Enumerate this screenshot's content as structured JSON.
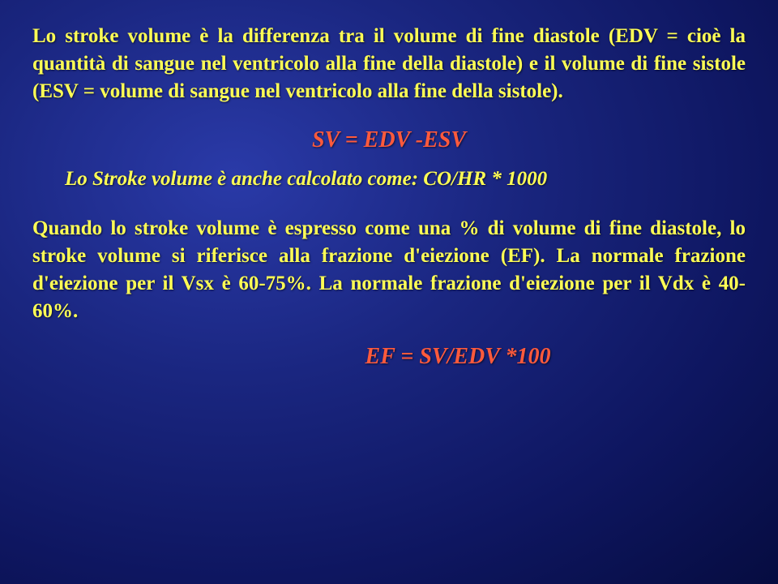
{
  "slide": {
    "paragraph1": "Lo stroke volume è la differenza tra il volume di fine diastole (EDV = cioè la quantità di sangue nel ventricolo alla fine della diastole) e il volume di fine sistole (ESV = volume di sangue nel ventricolo alla fine della sistole).",
    "formula1": "SV = EDV -ESV",
    "subline": "Lo Stroke volume è anche calcolato come: CO/HR * 1000",
    "paragraph2": "Quando lo stroke volume è espresso come una % di volume di fine diastole, lo stroke volume si riferisce alla frazione d'eiezione (EF). La normale frazione d'eiezione per il Vsx è 60-75%. La normale frazione d'eiezione per il Vdx è 40-60%.",
    "formula2": "EF = SV/EDV *100"
  },
  "style": {
    "background_gradient": [
      "#2a3aa8",
      "#1a2680",
      "#0e1660",
      "#060c40"
    ],
    "text_color": "#ffff55",
    "formula_color": "#ff5a3c",
    "body_fontsize": 25,
    "formula_fontsize": 28,
    "font_family": "Georgia, Times New Roman, serif",
    "font_weight": "bold",
    "text_shadow": "1px 1px 2px rgba(0,0,0,0.6)"
  }
}
